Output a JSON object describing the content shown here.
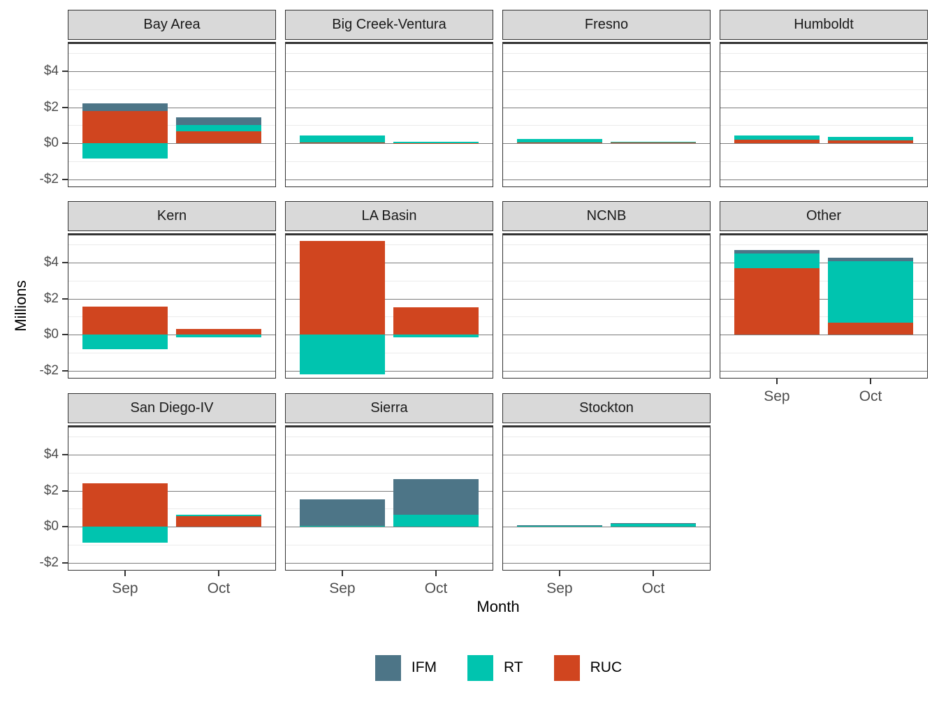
{
  "chart_data": {
    "type": "bar",
    "stacked": true,
    "title": "",
    "xlabel": "Month",
    "ylabel": "Millions",
    "categories": [
      "Sep",
      "Oct"
    ],
    "legend_position": "bottom",
    "grid": true,
    "ylim": [
      -2.43,
      5.62
    ],
    "y_ticks": [
      {
        "value": 4,
        "label": "$4"
      },
      {
        "value": 2,
        "label": "$2"
      },
      {
        "value": 0,
        "label": "$0"
      },
      {
        "value": -2,
        "label": "-$2"
      }
    ],
    "y_minor_ticks": [
      5,
      3,
      1,
      -1
    ],
    "stack_order_bottom_to_top": [
      "RUC",
      "RT",
      "IFM"
    ],
    "legend_items": [
      {
        "label": "IFM",
        "color": "#4d7587"
      },
      {
        "label": "RT",
        "color": "#00c4af"
      },
      {
        "label": "RUC",
        "color": "#d0451f"
      }
    ],
    "facets": [
      {
        "name": "Bay Area",
        "values": {
          "Sep": {
            "IFM": 0.4,
            "RT": -0.85,
            "RUC": 1.8
          },
          "Oct": {
            "IFM": 0.45,
            "RT": 0.35,
            "RUC": 0.65
          }
        }
      },
      {
        "name": "Big Creek-Ventura",
        "values": {
          "Sep": {
            "IFM": 0,
            "RT": 0.4,
            "RUC": 0.05
          },
          "Oct": {
            "IFM": 0,
            "RT": 0.07,
            "RUC": 0.02
          }
        }
      },
      {
        "name": "Fresno",
        "values": {
          "Sep": {
            "IFM": 0,
            "RT": 0.18,
            "RUC": 0.05
          },
          "Oct": {
            "IFM": 0,
            "RT": 0.06,
            "RUC": 0.03
          }
        }
      },
      {
        "name": "Humboldt",
        "values": {
          "Sep": {
            "IFM": 0,
            "RT": 0.2,
            "RUC": 0.22
          },
          "Oct": {
            "IFM": 0,
            "RT": 0.18,
            "RUC": 0.18
          }
        }
      },
      {
        "name": "Kern",
        "values": {
          "Sep": {
            "IFM": 0,
            "RT": -0.8,
            "RUC": 1.55
          },
          "Oct": {
            "IFM": 0,
            "RT": -0.15,
            "RUC": 0.32
          }
        }
      },
      {
        "name": "LA Basin",
        "values": {
          "Sep": {
            "IFM": 0,
            "RT": -2.2,
            "RUC": 5.2
          },
          "Oct": {
            "IFM": 0,
            "RT": -0.15,
            "RUC": 1.5
          }
        }
      },
      {
        "name": "NCNB",
        "values": {
          "Sep": {
            "IFM": 0,
            "RT": 0,
            "RUC": 0
          },
          "Oct": {
            "IFM": 0,
            "RT": 0,
            "RUC": 0
          }
        }
      },
      {
        "name": "Other",
        "values": {
          "Sep": {
            "IFM": 0.22,
            "RT": 0.78,
            "RUC": 3.7
          },
          "Oct": {
            "IFM": 0.2,
            "RT": 3.4,
            "RUC": 0.67
          }
        }
      },
      {
        "name": "San Diego-IV",
        "values": {
          "Sep": {
            "IFM": 0,
            "RT": -0.9,
            "RUC": 2.4
          },
          "Oct": {
            "IFM": 0,
            "RT": 0.08,
            "RUC": 0.6
          }
        }
      },
      {
        "name": "Sierra",
        "values": {
          "Sep": {
            "IFM": 1.44,
            "RT": 0.02,
            "RUC": 0.04
          },
          "Oct": {
            "IFM": 1.95,
            "RT": 0.68,
            "RUC": 0
          }
        }
      },
      {
        "name": "Stockton",
        "values": {
          "Sep": {
            "IFM": 0.03,
            "RT": 0.07,
            "RUC": 0
          },
          "Oct": {
            "IFM": 0.04,
            "RT": 0.18,
            "RUC": 0
          }
        }
      }
    ]
  }
}
